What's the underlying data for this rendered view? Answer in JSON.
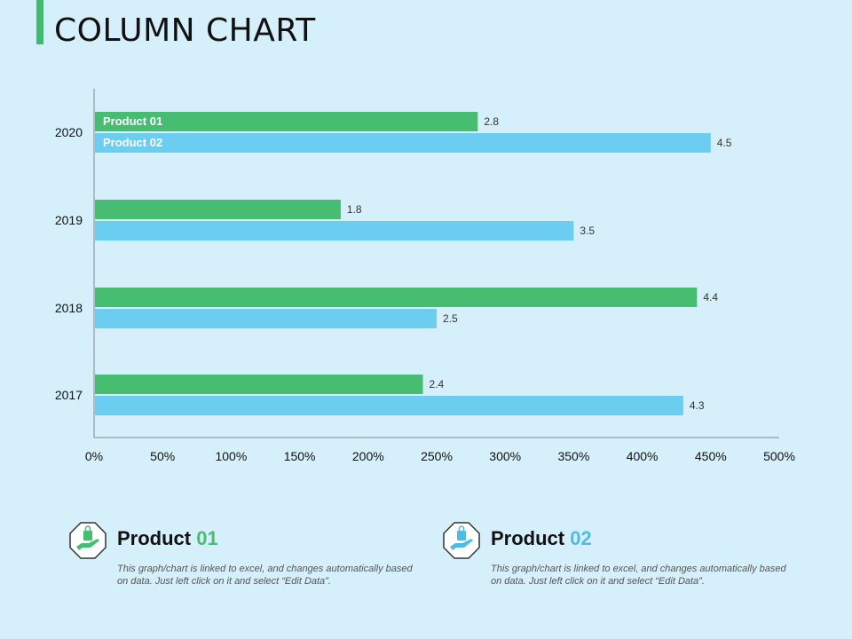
{
  "page": {
    "title": "COLUMN CHART"
  },
  "colors": {
    "product01": "#47bd72",
    "product02": "#6bcdf0",
    "background": "#d5f0fb"
  },
  "chart_data": {
    "type": "bar",
    "orientation": "horizontal",
    "categories": [
      "2020",
      "2019",
      "2018",
      "2017"
    ],
    "series": [
      {
        "name": "Product 01",
        "values": [
          2.8,
          1.8,
          4.4,
          2.4
        ]
      },
      {
        "name": "Product 02",
        "values": [
          4.5,
          3.5,
          2.5,
          4.3
        ]
      }
    ],
    "x_ticks": [
      "0%",
      "50%",
      "100%",
      "150%",
      "200%",
      "250%",
      "300%",
      "350%",
      "400%",
      "450%",
      "500%"
    ],
    "xlim": [
      0,
      5
    ],
    "legend": "inside-bars-top",
    "grid": false
  },
  "footer": {
    "product01": {
      "title_main": "Product",
      "title_num": "01",
      "desc": "This graph/chart is linked to excel, and changes automatically based on data. Just left click on it and select “Edit Data”.",
      "icon": "hand-shopping-bag-icon"
    },
    "product02": {
      "title_main": "Product",
      "title_num": "02",
      "desc": "This graph/chart is linked to excel, and changes automatically based on data. Just left click on it and select “Edit Data”.",
      "icon": "hand-shopping-bag-icon"
    }
  }
}
